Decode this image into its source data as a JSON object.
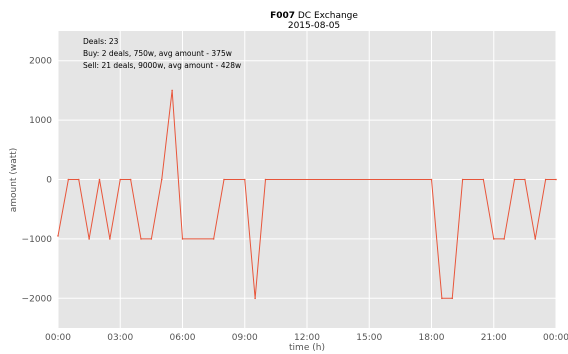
{
  "chart_data": {
    "type": "line",
    "title_bold": "F007",
    "title_rest": "DC Exchange",
    "subtitle": "2015-08-05",
    "xlabel": "time (h)",
    "ylabel": "amount (watt)",
    "xlim": [
      0,
      24
    ],
    "ylim": [
      -2500,
      2500
    ],
    "x_ticks": [
      0,
      3,
      6,
      9,
      12,
      15,
      18,
      21,
      24
    ],
    "x_tick_labels": [
      "00:00",
      "03:00",
      "06:00",
      "09:00",
      "12:00",
      "15:00",
      "18:00",
      "21:00",
      "00:00"
    ],
    "y_ticks": [
      2000,
      1000,
      0,
      -1000,
      -2000
    ],
    "y_tick_labels": [
      "2000",
      "1000",
      "0",
      "−1000",
      "−2000"
    ],
    "grid": true,
    "annotations": [
      "Deals: 23",
      "Buy: 2 deals, 750w, avg amount - 375w",
      "Sell: 21 deals, 9000w, avg amount - 428w"
    ],
    "series": [
      {
        "color": "#e8553a",
        "points": [
          [
            0.0,
            -950
          ],
          [
            0.5,
            0
          ],
          [
            1.0,
            0
          ],
          [
            1.5,
            -1000
          ],
          [
            2.0,
            0
          ],
          [
            2.5,
            -1000
          ],
          [
            3.0,
            0
          ],
          [
            3.5,
            0
          ],
          [
            4.0,
            -1000
          ],
          [
            4.5,
            -1000
          ],
          [
            5.0,
            0
          ],
          [
            5.5,
            1500
          ],
          [
            6.0,
            -1000
          ],
          [
            7.5,
            -1000
          ],
          [
            8.0,
            0
          ],
          [
            9.0,
            0
          ],
          [
            9.5,
            -2000
          ],
          [
            10.0,
            0
          ],
          [
            18.0,
            0
          ],
          [
            18.5,
            -2000
          ],
          [
            19.0,
            -2000
          ],
          [
            19.5,
            0
          ],
          [
            20.5,
            0
          ],
          [
            21.0,
            -1000
          ],
          [
            21.5,
            -1000
          ],
          [
            22.0,
            0
          ],
          [
            22.5,
            0
          ],
          [
            23.0,
            -1000
          ],
          [
            23.5,
            0
          ],
          [
            24.0,
            0
          ]
        ]
      }
    ]
  }
}
